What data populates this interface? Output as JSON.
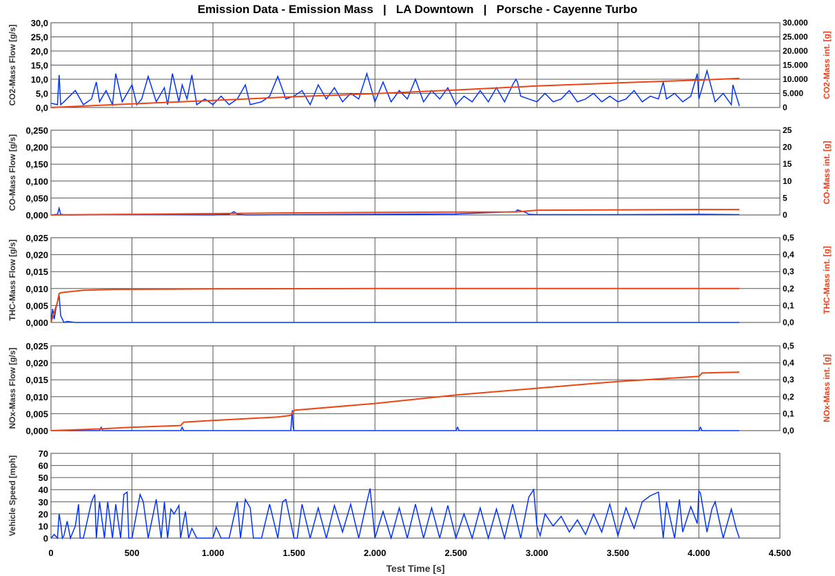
{
  "title": "Emission Data - Emission Mass   |   LA Downtown   |   Porsche - Cayenne Turbo",
  "colors": {
    "flow": "#0033ff",
    "integral": "#ee4411",
    "grid": "#555555"
  },
  "x_axis": {
    "label": "Test Time [s]",
    "range": [
      0,
      4500
    ],
    "ticks": [
      0,
      500,
      1000,
      1500,
      2000,
      2500,
      3000,
      3500,
      4000,
      4500
    ],
    "tick_labels": [
      "0",
      "500",
      "1.000",
      "1.500",
      "2.000",
      "2.500",
      "3.000",
      "3.500",
      "4.000",
      "4.500"
    ]
  },
  "chart_data": [
    {
      "type": "line",
      "left_label": "CO2-Mass Flow [g/s]",
      "right_label": "CO2-Mass int. [g]",
      "ylim": [
        0,
        30
      ],
      "yticks": [
        "0,0",
        "5,0",
        "10,0",
        "15,0",
        "20,0",
        "25,0",
        "30,0"
      ],
      "ylim_right": [
        0,
        30000
      ],
      "yticks_right": [
        "0",
        "5.000",
        "10.000",
        "15.000",
        "20.000",
        "25.000",
        "30.000"
      ],
      "series": [
        {
          "x": [
            0,
            40,
            50,
            60,
            80,
            150,
            200,
            250,
            280,
            300,
            340,
            380,
            400,
            440,
            500,
            530,
            560,
            600,
            650,
            700,
            720,
            750,
            790,
            810,
            840,
            870,
            900,
            950,
            1000,
            1050,
            1100,
            1150,
            1200,
            1230,
            1300,
            1350,
            1400,
            1450,
            1500,
            1550,
            1600,
            1650,
            1700,
            1750,
            1800,
            1850,
            1900,
            1950,
            2000,
            2050,
            2100,
            2150,
            2200,
            2250,
            2300,
            2350,
            2400,
            2450,
            2500,
            2550,
            2600,
            2650,
            2700,
            2750,
            2800,
            2850,
            2870,
            2880,
            2900,
            2950,
            3000,
            3050,
            3100,
            3150,
            3200,
            3250,
            3300,
            3350,
            3400,
            3450,
            3500,
            3550,
            3600,
            3650,
            3700,
            3750,
            3780,
            3800,
            3850,
            3900,
            3950,
            3990,
            4000,
            4050,
            4100,
            4150,
            4200,
            4210,
            4250
          ],
          "y": [
            1.5,
            1,
            11.5,
            1,
            2,
            6,
            1,
            3,
            9,
            2,
            6,
            1,
            12,
            2,
            8,
            1,
            3,
            11,
            2,
            7,
            1,
            12,
            2,
            8,
            3,
            11.5,
            1,
            3,
            1,
            4,
            1,
            3,
            8,
            1,
            2,
            4,
            11,
            3,
            4,
            6,
            1,
            8,
            3,
            7,
            2,
            5,
            3,
            12,
            2,
            9,
            2,
            6,
            3,
            10,
            2,
            6,
            3,
            7,
            1,
            4,
            2,
            6,
            2,
            7,
            2,
            8,
            10,
            9,
            4,
            3,
            2,
            5,
            2,
            3,
            6,
            2,
            3,
            5,
            2,
            4,
            2,
            3,
            6,
            2,
            4,
            3,
            9,
            3,
            5,
            2,
            4,
            12,
            3,
            13,
            2,
            5,
            1,
            8,
            0.5
          ]
        },
        {
          "x": [
            0,
            500,
            1000,
            1500,
            2000,
            2500,
            3000,
            3500,
            4000,
            4250
          ],
          "y": [
            0,
            1300,
            2500,
            3800,
            4900,
            6200,
            7600,
            8700,
            9700,
            10300
          ]
        }
      ]
    },
    {
      "type": "line",
      "left_label": "CO-Mass Flow [g/s]",
      "right_label": "CO-Mass int. [g]",
      "ylim": [
        0,
        0.25
      ],
      "yticks": [
        "0,000",
        "0,050",
        "0,100",
        "0,150",
        "0,200",
        "0,250"
      ],
      "ylim_right": [
        0,
        25
      ],
      "yticks_right": [
        "0",
        "5",
        "10",
        "15",
        "20",
        "25"
      ],
      "series": [
        {
          "x": [
            0,
            40,
            50,
            60,
            100,
            500,
            1000,
            1100,
            1130,
            1150,
            1200,
            1500,
            2000,
            2500,
            2870,
            2880,
            2900,
            2930,
            2950,
            3000,
            3500,
            4000,
            4250
          ],
          "y": [
            0,
            0.002,
            0.02,
            0.002,
            0,
            0.001,
            0,
            0.002,
            0.01,
            0.002,
            0,
            0.001,
            0.002,
            0.003,
            0.01,
            0.015,
            0.012,
            0.008,
            0.002,
            0.001,
            0.001,
            0.002,
            0.001
          ]
        },
        {
          "x": [
            0,
            500,
            1000,
            1500,
            2000,
            2500,
            2870,
            2950,
            3000,
            3500,
            4000,
            4250
          ],
          "y": [
            0,
            0.2,
            0.4,
            0.6,
            0.75,
            0.85,
            0.9,
            1.2,
            1.4,
            1.5,
            1.6,
            1.6
          ]
        }
      ]
    },
    {
      "type": "line",
      "left_label": "THC-Mass Flow [g/s]",
      "right_label": "THC-Mass int. [g]",
      "ylim": [
        0,
        0.025
      ],
      "yticks": [
        "0,000",
        "0,005",
        "0,010",
        "0,015",
        "0,020",
        "0,025"
      ],
      "ylim_right": [
        0,
        0.5
      ],
      "yticks_right": [
        "0,0",
        "0,1",
        "0,2",
        "0,3",
        "0,4",
        "0,5"
      ],
      "series": [
        {
          "x": [
            0,
            10,
            20,
            30,
            40,
            50,
            60,
            80,
            100,
            150,
            4250
          ],
          "y": [
            0,
            0.004,
            0.001,
            0.004,
            0.006,
            0.008,
            0.002,
            0,
            0.0003,
            0,
            0
          ]
        },
        {
          "x": [
            0,
            20,
            40,
            50,
            60,
            100,
            200,
            400,
            1000,
            2000,
            3000,
            4250
          ],
          "y": [
            0,
            0.06,
            0.12,
            0.17,
            0.175,
            0.18,
            0.19,
            0.195,
            0.198,
            0.2,
            0.2,
            0.2
          ]
        }
      ]
    },
    {
      "type": "line",
      "left_label": "NOx-Mass Flow [g/s]",
      "right_label": "NOx-Mass int. [g]",
      "ylim": [
        0,
        0.025
      ],
      "yticks": [
        "0,000",
        "0,005",
        "0,010",
        "0,015",
        "0,020",
        "0,025"
      ],
      "ylim_right": [
        0,
        0.5
      ],
      "yticks_right": [
        "0,0",
        "0,1",
        "0,2",
        "0,3",
        "0,4",
        "0,5"
      ],
      "series": [
        {
          "x": [
            0,
            300,
            310,
            320,
            800,
            810,
            820,
            1480,
            1490,
            1495,
            1500,
            2500,
            2510,
            2520,
            4000,
            4010,
            4020,
            4250
          ],
          "y": [
            0,
            0,
            0.001,
            0,
            0,
            0.001,
            0,
            0,
            0.006,
            0.001,
            0,
            0,
            0.001,
            0,
            0,
            0.001,
            0,
            0
          ]
        },
        {
          "x": [
            0,
            300,
            500,
            800,
            820,
            1000,
            1400,
            1480,
            1500,
            2000,
            2500,
            3000,
            3500,
            4000,
            4020,
            4250
          ],
          "y": [
            0,
            0.01,
            0.02,
            0.03,
            0.05,
            0.06,
            0.08,
            0.09,
            0.12,
            0.16,
            0.21,
            0.25,
            0.29,
            0.32,
            0.34,
            0.345
          ]
        }
      ]
    },
    {
      "type": "line",
      "left_label": "Vehicle Speed [mph]",
      "right_label": "",
      "ylim": [
        0,
        70
      ],
      "yticks": [
        "0",
        "10",
        "20",
        "30",
        "40",
        "50",
        "60",
        "70"
      ],
      "series": [
        {
          "x": [
            0,
            20,
            40,
            50,
            60,
            70,
            80,
            100,
            120,
            150,
            170,
            180,
            200,
            250,
            270,
            280,
            300,
            330,
            350,
            380,
            400,
            430,
            450,
            470,
            480,
            500,
            550,
            570,
            600,
            650,
            680,
            700,
            720,
            740,
            760,
            790,
            800,
            830,
            850,
            870,
            900,
            950,
            1000,
            1020,
            1050,
            1100,
            1150,
            1170,
            1200,
            1230,
            1250,
            1300,
            1350,
            1400,
            1430,
            1450,
            1500,
            1520,
            1550,
            1600,
            1650,
            1700,
            1750,
            1800,
            1850,
            1900,
            1950,
            1970,
            2000,
            2050,
            2100,
            2150,
            2200,
            2250,
            2300,
            2350,
            2400,
            2450,
            2500,
            2550,
            2600,
            2650,
            2700,
            2750,
            2800,
            2850,
            2900,
            2950,
            2980,
            3000,
            3020,
            3050,
            3100,
            3150,
            3200,
            3250,
            3300,
            3350,
            3400,
            3450,
            3500,
            3550,
            3600,
            3650,
            3700,
            3750,
            3780,
            3800,
            3850,
            3880,
            3900,
            3950,
            3990,
            4000,
            4010,
            4050,
            4080,
            4100,
            4150,
            4200,
            4230,
            4250
          ],
          "y": [
            0,
            3,
            0,
            20,
            12,
            0,
            2,
            14,
            0,
            10,
            28,
            0,
            0,
            30,
            36,
            0,
            30,
            0,
            30,
            0,
            28,
            0,
            36,
            38,
            0,
            0,
            36,
            30,
            0,
            32,
            0,
            30,
            0,
            24,
            20,
            27,
            0,
            22,
            0,
            8,
            0,
            0,
            0,
            9,
            0,
            0,
            30,
            0,
            32,
            25,
            0,
            0,
            28,
            0,
            30,
            32,
            0,
            0,
            28,
            0,
            25,
            0,
            27,
            5,
            28,
            0,
            30,
            41,
            0,
            22,
            0,
            25,
            0,
            28,
            0,
            25,
            0,
            27,
            0,
            20,
            0,
            25,
            0,
            24,
            0,
            28,
            0,
            34,
            40,
            10,
            2,
            20,
            10,
            18,
            5,
            15,
            3,
            20,
            5,
            28,
            2,
            25,
            8,
            30,
            35,
            38,
            0,
            30,
            0,
            32,
            5,
            26,
            12,
            39,
            37,
            5,
            24,
            30,
            0,
            24,
            8,
            0
          ]
        }
      ]
    }
  ]
}
